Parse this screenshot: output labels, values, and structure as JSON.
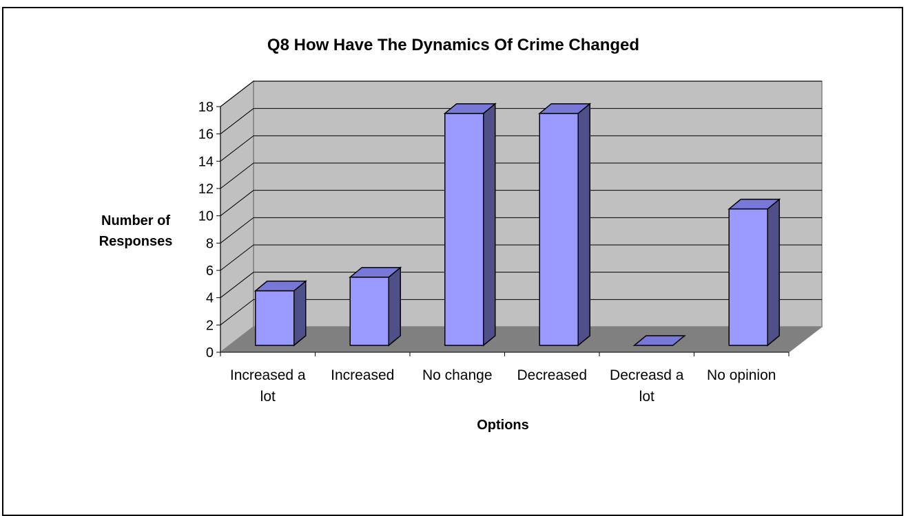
{
  "colors": {
    "background": "#ffffff",
    "plot_wall": "#c0c0c0",
    "plot_floor": "#808080",
    "bar_front": "#9999ff",
    "bar_side": "#4f4f8a",
    "bar_top": "#7878d8",
    "outline": "#000000"
  },
  "chart_data": {
    "type": "bar",
    "title": "Q8 How Have The Dynamics Of Crime Changed",
    "xlabel": "Options",
    "ylabel_lines": [
      "Number of",
      "Responses"
    ],
    "categories": [
      [
        "Increased a",
        "lot"
      ],
      [
        "Increased"
      ],
      [
        "No change"
      ],
      [
        "Decreased"
      ],
      [
        "Decreasd a",
        "lot"
      ],
      [
        "No opinion"
      ]
    ],
    "values": [
      4,
      5,
      17,
      17,
      0,
      10
    ],
    "ylim": [
      0,
      18
    ],
    "yticks": [
      "0",
      "2",
      "4",
      "6",
      "8",
      "10",
      "12",
      "14",
      "16",
      "18"
    ],
    "grid": true,
    "legend": "none",
    "three_d": true
  }
}
